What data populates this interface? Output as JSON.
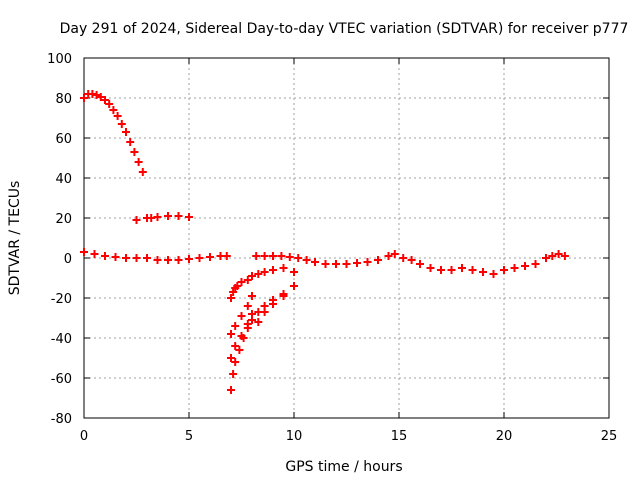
{
  "chart_data": {
    "type": "scatter",
    "title": "Day 291 of 2024, Sidereal Day-to-day VTEC variation (SDTVAR) for receiver p777",
    "xlabel": "GPS time / hours",
    "ylabel": "SDTVAR / TECUs",
    "xlim": [
      0,
      25
    ],
    "ylim": [
      -80,
      100
    ],
    "xticks": [
      "0",
      "5",
      "10",
      "15",
      "20",
      "25"
    ],
    "yticks": [
      "100",
      "80",
      "60",
      "40",
      "20",
      "0",
      "-20",
      "-40",
      "-60",
      "-80"
    ],
    "grid": true,
    "marker": "plus",
    "color": "#ff0000",
    "series": [
      {
        "name": "SDTVAR",
        "x": [
          0.0,
          0.2,
          0.4,
          0.6,
          0.8,
          1.0,
          1.2,
          1.4,
          1.6,
          1.8,
          2.0,
          2.2,
          2.4,
          2.6,
          2.8,
          3.0,
          3.2,
          2.5,
          3.0,
          3.5,
          4.0,
          4.5,
          5.0,
          0.0,
          0.5,
          1.0,
          1.5,
          2.0,
          2.5,
          3.0,
          3.5,
          4.0,
          4.5,
          5.0,
          5.5,
          6.0,
          6.5,
          6.8,
          7.0,
          7.1,
          7.2,
          7.3,
          7.5,
          7.8,
          8.0,
          8.3,
          8.6,
          9.0,
          9.5,
          10.0,
          7.0,
          7.2,
          7.5,
          7.8,
          8.0,
          8.3,
          8.6,
          9.0,
          9.5,
          10.0,
          7.0,
          7.2,
          7.5,
          7.8,
          8.0,
          7.0,
          7.1,
          7.2,
          7.4,
          7.6,
          7.8,
          8.0,
          8.3,
          8.6,
          9.0,
          9.5,
          10.0,
          8.2,
          8.6,
          9.0,
          9.4,
          9.8,
          10.2,
          10.6,
          11.0,
          11.5,
          12.0,
          12.5,
          13.0,
          13.5,
          14.0,
          14.5,
          14.8,
          15.2,
          15.6,
          16.0,
          16.5,
          17.0,
          17.5,
          18.0,
          18.5,
          19.0,
          19.5,
          20.0,
          20.5,
          21.0,
          21.5,
          22.0,
          22.3,
          22.6,
          22.9
        ],
        "y": [
          80,
          82,
          82,
          81.5,
          80.5,
          79,
          77,
          74,
          71,
          67,
          63,
          58,
          53,
          48,
          43,
          20,
          20,
          19,
          20,
          20.5,
          21,
          21,
          20.5,
          3,
          2,
          1,
          0.5,
          0,
          0,
          0,
          -1,
          -1,
          -1,
          -0.5,
          0,
          0.5,
          1,
          1,
          -20,
          -17,
          -15,
          -14,
          -12,
          -11,
          -9,
          -8,
          -7,
          -6,
          -5,
          -7,
          -38,
          -34,
          -29,
          -24,
          -19,
          -32,
          -27,
          -23,
          -19,
          -14,
          -50,
          -44,
          -39,
          -33,
          -28,
          -66,
          -58,
          -52,
          -46,
          -40,
          -35,
          -31,
          -27,
          -24,
          -21,
          -18,
          -14,
          1,
          1,
          1,
          1,
          0.5,
          0,
          -1,
          -2,
          -3,
          -3,
          -3,
          -2.5,
          -2,
          -1,
          1,
          2,
          0,
          -1,
          -3,
          -5,
          -6,
          -6,
          -5,
          -6,
          -7,
          -8,
          -6,
          -5,
          -4,
          -3,
          0,
          1,
          2,
          1
        ]
      }
    ]
  }
}
